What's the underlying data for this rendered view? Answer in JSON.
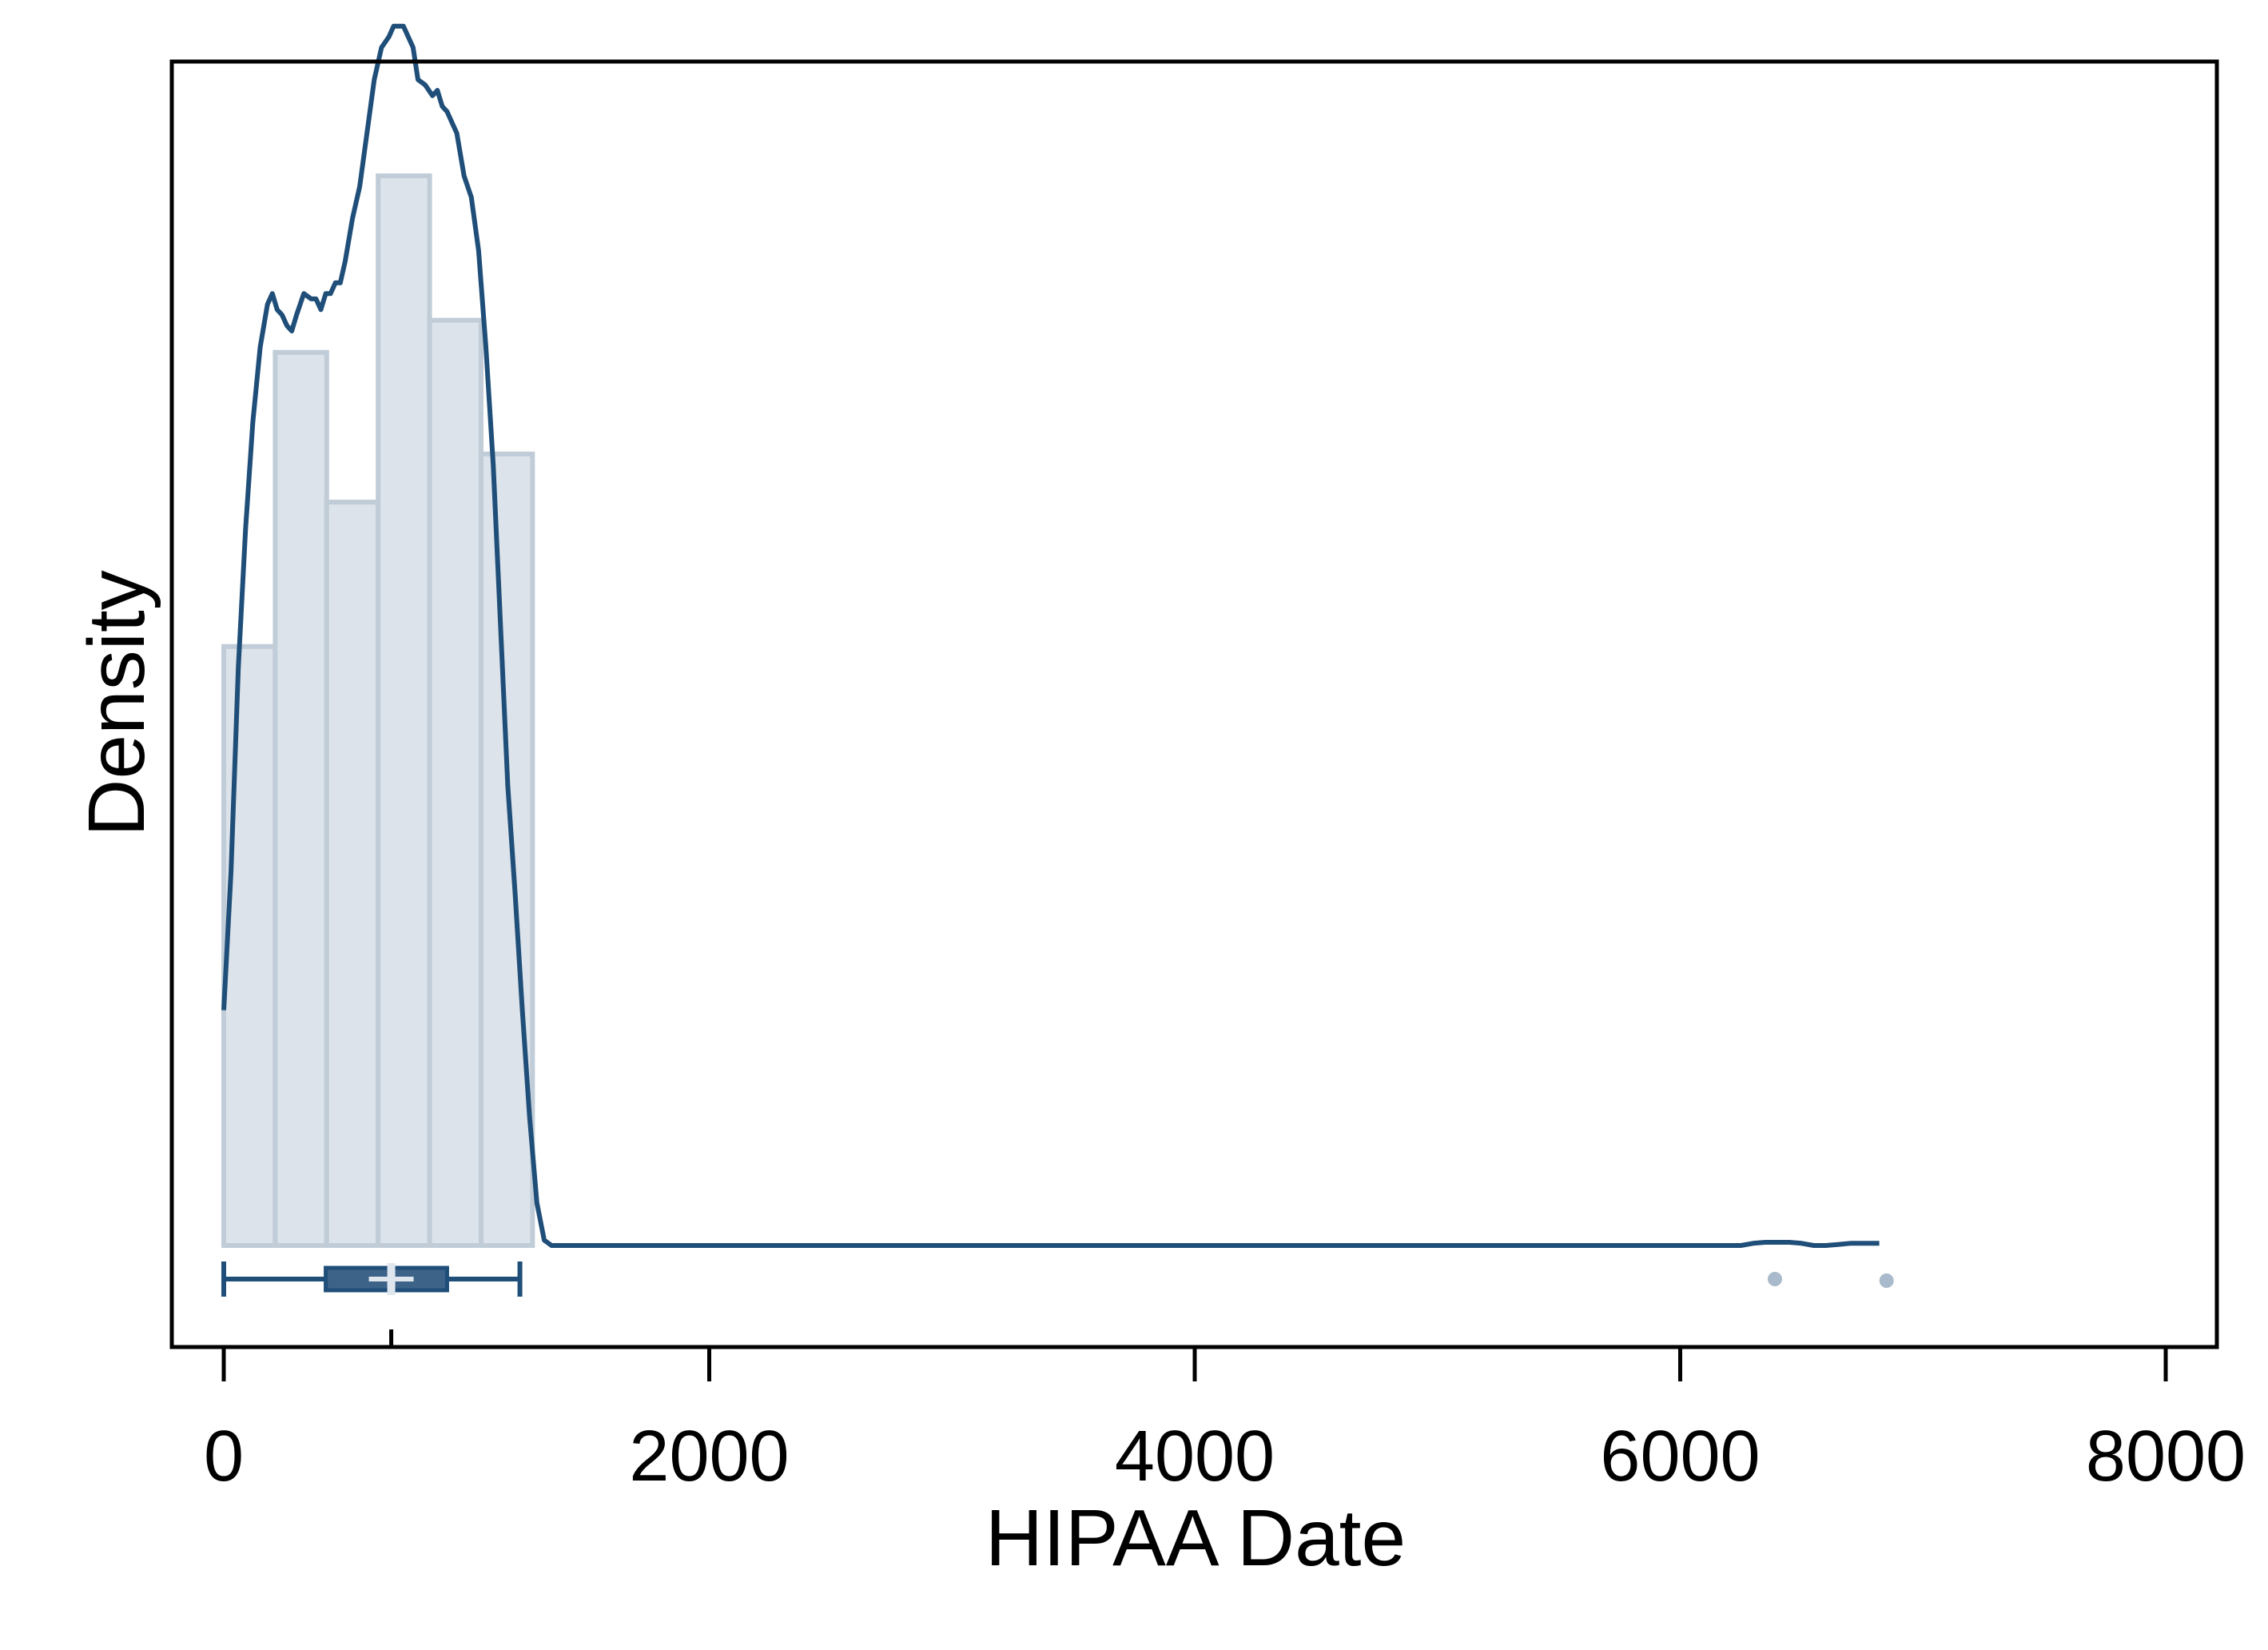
{
  "chart_data": {
    "type": "histogram",
    "xlabel": "HIPAA Date",
    "ylabel": "Density",
    "xlim": [
      -200,
      8100
    ],
    "xticks": [
      0,
      2000,
      4000,
      6000,
      8000
    ],
    "grid": false,
    "legend": "none",
    "colors": {
      "bar_fill": "#dce3ea",
      "bar_edge": "#c0ccd7",
      "density_line": "#1f4e79",
      "box_fill": "#3d6388",
      "outlier": "#a8bacb"
    },
    "histogram": {
      "bins": [
        {
          "x0": 0,
          "x1": 212,
          "density": 0.56
        },
        {
          "x0": 212,
          "x1": 424,
          "density": 0.835
        },
        {
          "x0": 424,
          "x1": 636,
          "density": 0.695
        },
        {
          "x0": 636,
          "x1": 848,
          "density": 1.0
        },
        {
          "x0": 848,
          "x1": 1060,
          "density": 0.865
        },
        {
          "x0": 1060,
          "x1": 1272,
          "density": 0.74
        }
      ]
    },
    "density_curve": {
      "x": [
        0,
        30,
        60,
        90,
        120,
        150,
        180,
        200,
        220,
        240,
        260,
        280,
        300,
        330,
        360,
        380,
        400,
        420,
        440,
        460,
        480,
        500,
        530,
        560,
        590,
        620,
        650,
        680,
        700,
        720,
        740,
        760,
        780,
        800,
        830,
        860,
        880,
        900,
        920,
        940,
        960,
        990,
        1020,
        1050,
        1080,
        1110,
        1140,
        1170,
        1200,
        1230,
        1260,
        1290,
        1320,
        1350,
        1380,
        1400,
        1420,
        1450,
        2000,
        3000,
        4000,
        5000,
        6000,
        6250,
        6300,
        6350,
        6400,
        6450,
        6500,
        6550,
        6600,
        6650,
        6700,
        6750,
        6800,
        6820
      ],
      "y": [
        0.22,
        0.35,
        0.54,
        0.67,
        0.77,
        0.84,
        0.88,
        0.89,
        0.875,
        0.87,
        0.86,
        0.855,
        0.87,
        0.89,
        0.885,
        0.885,
        0.875,
        0.89,
        0.89,
        0.9,
        0.9,
        0.92,
        0.96,
        0.99,
        1.04,
        1.09,
        1.12,
        1.13,
        1.14,
        1.14,
        1.14,
        1.13,
        1.12,
        1.09,
        1.085,
        1.075,
        1.08,
        1.065,
        1.06,
        1.05,
        1.04,
        1.0,
        0.98,
        0.93,
        0.84,
        0.73,
        0.58,
        0.43,
        0.33,
        0.22,
        0.12,
        0.04,
        0.005,
        0.0,
        0.0,
        0.0,
        0.0,
        0.0,
        0.0,
        0.0,
        0.0,
        0.0,
        0.0,
        0.0,
        0.002,
        0.003,
        0.003,
        0.003,
        0.002,
        0.0,
        0.0,
        0.001,
        0.002,
        0.002,
        0.002,
        0.002
      ]
    },
    "boxplot": {
      "whisker_low": 0,
      "q1": 420,
      "median": 690,
      "q3": 920,
      "whisker_high": 1220,
      "outliers": [
        6390,
        6850
      ]
    }
  }
}
